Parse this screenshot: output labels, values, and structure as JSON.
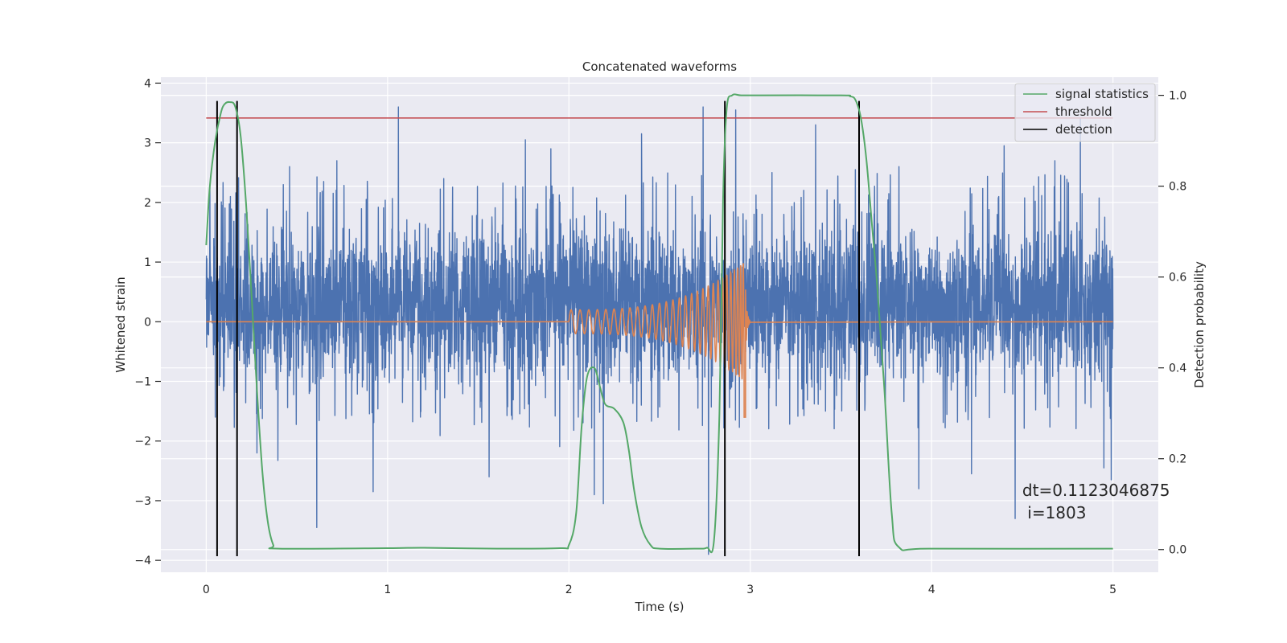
{
  "chart_data": {
    "type": "line",
    "title": "Concatenated waveforms",
    "xlabel": "Time (s)",
    "ylabel": "Whitened strain",
    "y2label": "Detection probability",
    "xlim": [
      -0.25,
      5.25
    ],
    "ylim": [
      -4.2,
      4.1
    ],
    "y2lim": [
      -0.05,
      1.04
    ],
    "xticks": [
      0,
      1,
      2,
      3,
      4,
      5
    ],
    "xtick_labels": [
      "0",
      "1",
      "2",
      "3",
      "4",
      "5"
    ],
    "yticks": [
      -4,
      -3,
      -2,
      -1,
      0,
      1,
      2,
      3,
      4
    ],
    "ytick_labels": [
      "−4",
      "−3",
      "−2",
      "−1",
      "0",
      "1",
      "2",
      "3",
      "4"
    ],
    "y2ticks": [
      0.0,
      0.2,
      0.4,
      0.6,
      0.8,
      1.0
    ],
    "y2tick_labels": [
      "0.0",
      "0.2",
      "0.4",
      "0.6",
      "0.8",
      "1.0"
    ],
    "grid": true,
    "legend_position": "top-right",
    "legend": [
      {
        "label": "signal statistics",
        "color": "#55a868"
      },
      {
        "label": "threshold",
        "color": "#c44e52"
      },
      {
        "label": "detection",
        "color": "#000000"
      }
    ],
    "noise": {
      "color": "#4c72b0",
      "x_range": [
        0,
        5
      ],
      "typical_range": [
        -1.5,
        2.0
      ],
      "peaks": [
        {
          "x": 0.02,
          "y": 2.25
        },
        {
          "x": 0.05,
          "y": -1.6
        },
        {
          "x": 0.17,
          "y": -2.65
        },
        {
          "x": 0.28,
          "y": -2.2
        },
        {
          "x": 0.46,
          "y": 2.6
        },
        {
          "x": 0.61,
          "y": -3.45
        },
        {
          "x": 0.72,
          "y": 2.7
        },
        {
          "x": 0.92,
          "y": -2.85
        },
        {
          "x": 1.06,
          "y": 3.6
        },
        {
          "x": 1.31,
          "y": 2.4
        },
        {
          "x": 1.56,
          "y": -2.6
        },
        {
          "x": 1.76,
          "y": 3.05
        },
        {
          "x": 1.9,
          "y": 2.9
        },
        {
          "x": 2.14,
          "y": -2.9
        },
        {
          "x": 2.19,
          "y": -3.05
        },
        {
          "x": 2.4,
          "y": 3.15
        },
        {
          "x": 2.74,
          "y": 3.6
        },
        {
          "x": 2.77,
          "y": -3.9
        },
        {
          "x": 2.92,
          "y": 3.55
        },
        {
          "x": 3.12,
          "y": 2.5
        },
        {
          "x": 3.36,
          "y": 3.3
        },
        {
          "x": 3.58,
          "y": 2.55
        },
        {
          "x": 3.6,
          "y": -2.45
        },
        {
          "x": 3.82,
          "y": 2.6
        },
        {
          "x": 3.93,
          "y": -2.8
        },
        {
          "x": 4.22,
          "y": -2.55
        },
        {
          "x": 4.4,
          "y": 2.95
        },
        {
          "x": 4.46,
          "y": -3.3
        },
        {
          "x": 4.68,
          "y": 2.7
        },
        {
          "x": 4.82,
          "y": 3.4
        },
        {
          "x": 4.95,
          "y": -2.45
        },
        {
          "x": 4.99,
          "y": -2.65
        }
      ]
    },
    "chirp": {
      "color": "#dd8452",
      "start": 2.0,
      "merger": 2.97,
      "end": 3.0,
      "amplitude_start": 0.2,
      "amplitude_peak": 1.0,
      "trough_at_merger": -1.6
    },
    "series": [
      {
        "name": "signal statistics",
        "color": "#55a868",
        "axis": "right",
        "x": [
          0.0,
          0.02,
          0.05,
          0.08,
          0.1,
          0.13,
          0.16,
          0.19,
          0.22,
          0.25,
          0.28,
          0.31,
          0.34,
          0.37,
          0.4,
          1.0,
          1.2,
          1.6,
          1.95,
          2.0,
          2.04,
          2.07,
          2.1,
          2.14,
          2.17,
          2.2,
          2.25,
          2.3,
          2.33,
          2.36,
          2.4,
          2.45,
          2.5,
          2.7,
          2.76,
          2.8,
          2.83,
          2.85,
          2.87,
          2.9,
          2.95,
          3.05,
          3.5,
          3.55,
          3.58,
          3.61,
          3.64,
          3.67,
          3.7,
          3.74,
          3.78,
          3.82,
          4.0,
          5.0
        ],
        "y": [
          0.67,
          0.8,
          0.9,
          0.96,
          0.98,
          0.985,
          0.975,
          0.91,
          0.76,
          0.56,
          0.35,
          0.17,
          0.06,
          0.01,
          0.002,
          0.003,
          0.004,
          0.002,
          0.003,
          0.01,
          0.08,
          0.27,
          0.38,
          0.4,
          0.36,
          0.32,
          0.31,
          0.28,
          0.22,
          0.13,
          0.05,
          0.01,
          0.002,
          0.002,
          0.004,
          0.02,
          0.3,
          0.77,
          0.97,
          1.0,
          1.0,
          1.0,
          1.0,
          0.998,
          0.99,
          0.95,
          0.86,
          0.72,
          0.58,
          0.35,
          0.08,
          0.005,
          0.002,
          0.002
        ]
      },
      {
        "name": "threshold",
        "color": "#c44e52",
        "axis": "right",
        "x": [
          0,
          5
        ],
        "y": [
          0.95,
          0.95
        ]
      }
    ],
    "detections": [
      0.06,
      0.17,
      2.86,
      3.6
    ],
    "detection_top": 3.7,
    "detection_bottom": -3.93,
    "annotation": {
      "line1": "dt=0.1123046875",
      "line2": " i=1803",
      "x": 4.5,
      "y": -3.0
    }
  }
}
